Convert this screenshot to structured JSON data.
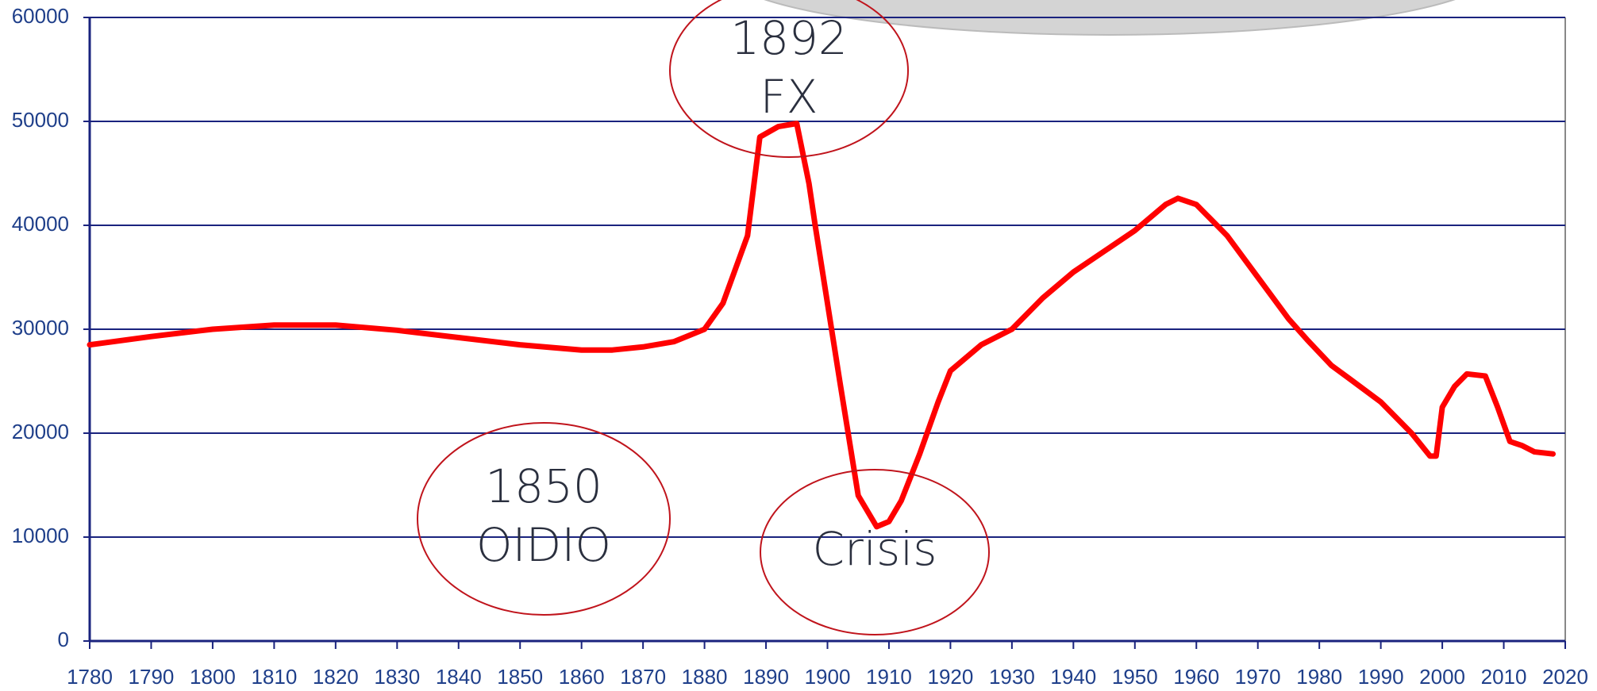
{
  "chart_data": {
    "type": "line",
    "x": [
      1780,
      1790,
      1800,
      1810,
      1820,
      1830,
      1840,
      1850,
      1860,
      1865,
      1870,
      1875,
      1880,
      1883,
      1887,
      1889,
      1892,
      1895,
      1897,
      1898,
      1902,
      1905,
      1908,
      1910,
      1912,
      1915,
      1918,
      1920,
      1925,
      1930,
      1935,
      1940,
      1945,
      1950,
      1955,
      1957,
      1960,
      1965,
      1970,
      1975,
      1978,
      1982,
      1985,
      1990,
      1995,
      1998,
      1999,
      2000,
      2002,
      2004,
      2007,
      2009,
      2011,
      2013,
      2015,
      2018
    ],
    "series": [
      {
        "color": "#ff0000",
        "values": [
          28500,
          29300,
          30000,
          30400,
          30400,
          29900,
          29200,
          28500,
          28000,
          28000,
          28300,
          28800,
          30000,
          32500,
          39000,
          48500,
          49500,
          49800,
          44000,
          40000,
          25000,
          14000,
          11000,
          11500,
          13500,
          18000,
          23000,
          26000,
          28500,
          30000,
          33000,
          35500,
          37500,
          39500,
          42000,
          42600,
          42000,
          39000,
          35000,
          31000,
          29000,
          26500,
          25200,
          23000,
          20000,
          17800,
          17800,
          22500,
          24500,
          25700,
          25500,
          22500,
          19200,
          18800,
          18200,
          18000
        ]
      }
    ],
    "xlim": [
      1780,
      2020
    ],
    "xticks": [
      1780,
      1790,
      1800,
      1810,
      1820,
      1830,
      1840,
      1850,
      1860,
      1870,
      1880,
      1890,
      1900,
      1910,
      1920,
      1930,
      1940,
      1950,
      1960,
      1970,
      1980,
      1990,
      2000,
      2010,
      2020
    ],
    "ylim": [
      0,
      60000
    ],
    "yticks": [
      0,
      10000,
      20000,
      30000,
      40000,
      50000,
      60000
    ],
    "grid": true,
    "annotations": [
      [
        "1892",
        "FX"
      ],
      [
        "1850",
        "OIDIO"
      ],
      [
        "Crisis"
      ]
    ]
  }
}
